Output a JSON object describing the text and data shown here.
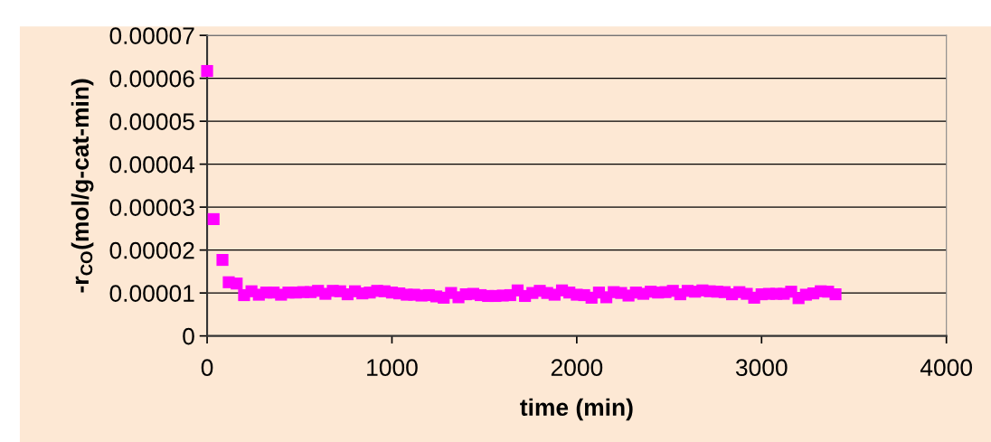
{
  "chart_data": {
    "type": "scatter",
    "xlabel": "time (min)",
    "ylabel": "-r$_{CO}$(mol/g-cat-min)",
    "x": [
      0,
      35,
      83,
      117,
      160,
      200,
      240,
      280,
      320,
      360,
      400,
      440,
      480,
      520,
      560,
      600,
      640,
      680,
      720,
      760,
      800,
      840,
      880,
      920,
      960,
      1000,
      1040,
      1080,
      1120,
      1160,
      1200,
      1240,
      1280,
      1320,
      1360,
      1400,
      1440,
      1480,
      1520,
      1560,
      1600,
      1640,
      1680,
      1720,
      1760,
      1800,
      1840,
      1880,
      1920,
      1960,
      2000,
      2040,
      2080,
      2120,
      2160,
      2200,
      2240,
      2280,
      2320,
      2360,
      2400,
      2440,
      2480,
      2520,
      2560,
      2600,
      2640,
      2680,
      2720,
      2760,
      2800,
      2840,
      2880,
      2920,
      2960,
      3000,
      3040,
      3080,
      3120,
      3160,
      3200,
      3240,
      3280,
      3320,
      3360,
      3400
    ],
    "series": [
      {
        "color": "#ff00ff",
        "values": [
          6.17e-05,
          2.72e-05,
          1.77e-05,
          1.25e-05,
          1.22e-05,
          9.5e-06,
          1.04e-05,
          9.6e-06,
          1.01e-05,
          1.01e-05,
          9.6e-06,
          1.01e-05,
          1.01e-05,
          1.02e-05,
          1.02e-05,
          1.05e-05,
          9.8e-06,
          1.05e-05,
          1.04e-05,
          9.7e-06,
          1.04e-05,
          9.9e-06,
          1.01e-05,
          1.05e-05,
          1.04e-05,
          1.01e-05,
          9.9e-06,
          9.6e-06,
          9.6e-06,
          9.4e-06,
          9.5e-06,
          9.2e-06,
          8.9e-06,
          1e-05,
          9e-06,
          9.7e-06,
          9.8e-06,
          9.5e-06,
          9.3e-06,
          9.3e-06,
          9.4e-06,
          9.5e-06,
          1.06e-05,
          9.3e-06,
          1e-05,
          1.05e-05,
          1e-05,
          9.6e-06,
          1.06e-05,
          1.01e-05,
          9.6e-06,
          9.5e-06,
          8.9e-06,
          1.01e-05,
          9e-06,
          1.02e-05,
          1e-05,
          9.4e-06,
          1.01e-05,
          9.8e-06,
          1.03e-05,
          1.01e-05,
          1.02e-05,
          1.05e-05,
          9.7e-06,
          1.05e-05,
          1.03e-05,
          1.06e-05,
          1.04e-05,
          1.03e-05,
          1.02e-05,
          9.7e-06,
          1.02e-05,
          9.8e-06,
          8.9e-06,
          9.7e-06,
          9.8e-06,
          9.8e-06,
          9.8e-06,
          1.03e-05,
          8.8e-06,
          9.6e-06,
          9.9e-06,
          1.04e-05,
          1.03e-05,
          9.7e-06
        ]
      }
    ],
    "xlim": [
      0,
      4000
    ],
    "xticks": [
      0,
      1000,
      2000,
      3000,
      4000
    ],
    "ylim": [
      0,
      7e-05
    ],
    "yticks": [
      {
        "value": 0,
        "label": "0"
      },
      {
        "value": 1e-05,
        "label": "0.00001"
      },
      {
        "value": 2e-05,
        "label": "0.00002"
      },
      {
        "value": 3e-05,
        "label": "0.00003"
      },
      {
        "value": 4e-05,
        "label": "0.00004"
      },
      {
        "value": 5e-05,
        "label": "0.00005"
      },
      {
        "value": 6e-05,
        "label": "0.00006"
      },
      {
        "value": 7e-05,
        "label": "0.00007"
      }
    ],
    "grid": "y",
    "marker": "square"
  }
}
